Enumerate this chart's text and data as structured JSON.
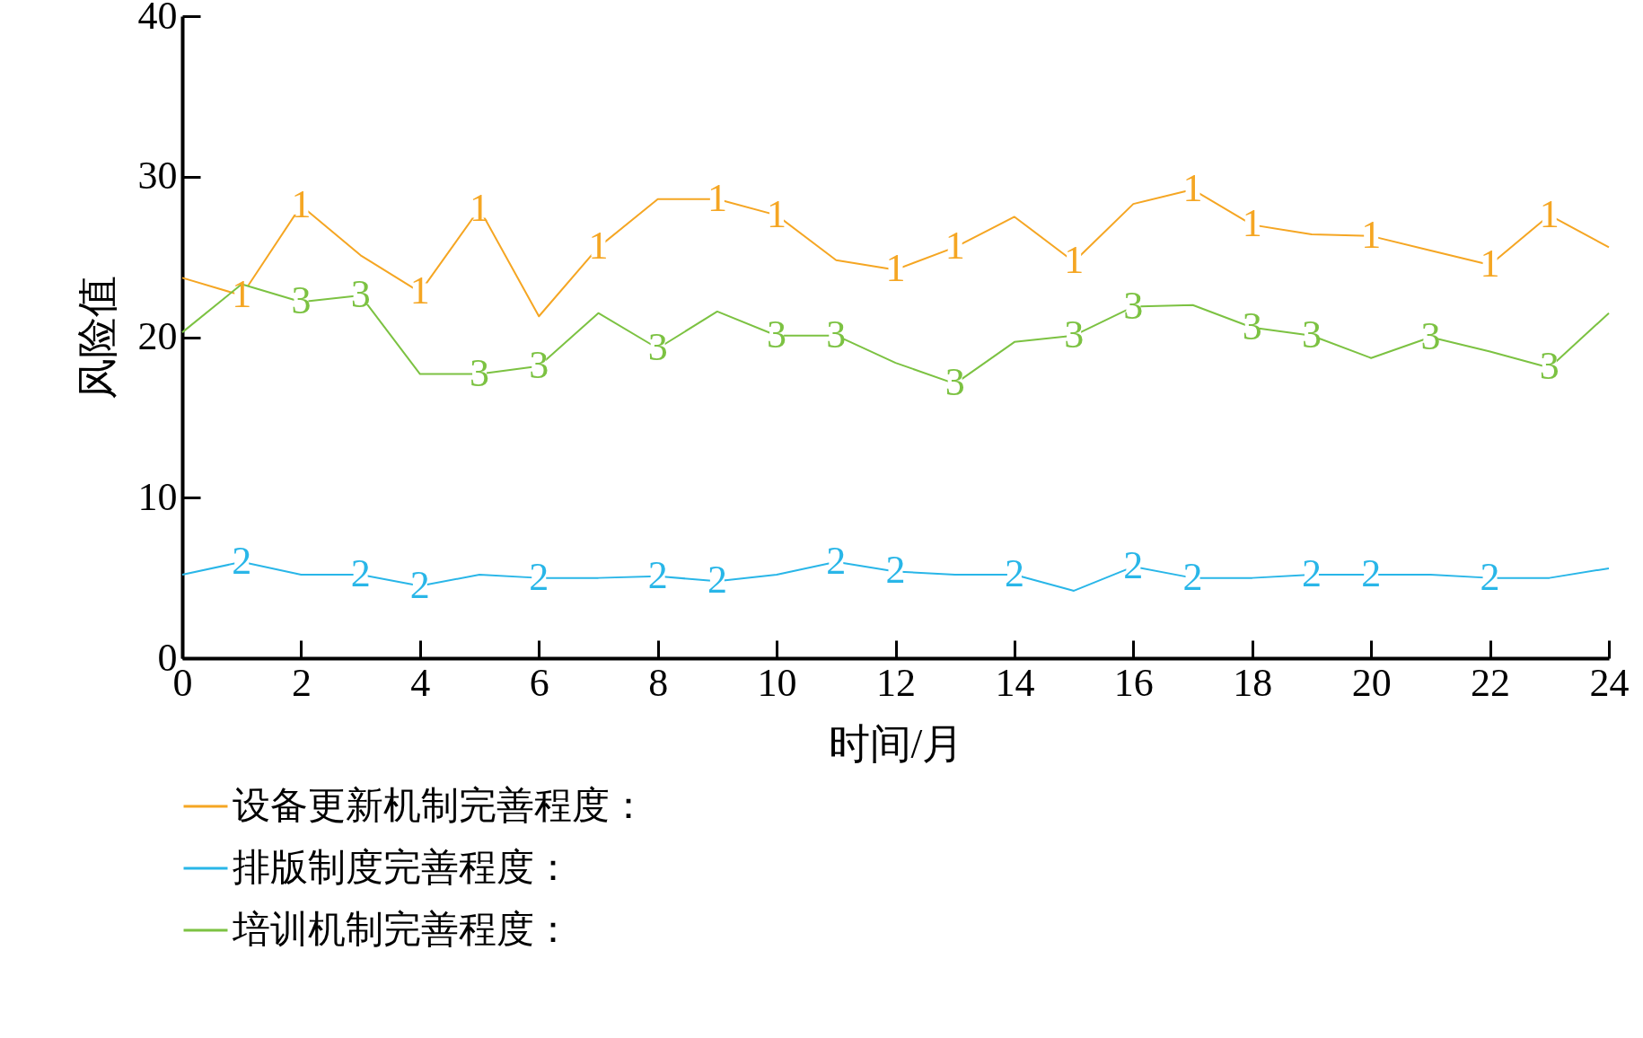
{
  "chart_data": {
    "type": "line",
    "xlabel": "时间/月",
    "ylabel": "风险值",
    "x": [
      0,
      1,
      2,
      3,
      4,
      5,
      6,
      7,
      8,
      9,
      10,
      11,
      12,
      13,
      14,
      15,
      16,
      17,
      18,
      19,
      20,
      21,
      22,
      23,
      24
    ],
    "series": [
      {
        "name": "设备更新机制完善程度：",
        "color": "#f5a623",
        "values": [
          23.7,
          22.6,
          28.2,
          25.1,
          22.8,
          28.0,
          21.3,
          25.6,
          28.6,
          28.6,
          27.6,
          24.8,
          24.2,
          25.6,
          27.5,
          24.7,
          28.3,
          29.2,
          27.0,
          26.4,
          26.3,
          25.4,
          24.5,
          27.6,
          25.6
        ]
      },
      {
        "name": "排版制度完善程度：",
        "color": "#29b6e8",
        "values": [
          5.2,
          6.0,
          5.2,
          5.2,
          4.5,
          5.2,
          5.0,
          5.0,
          5.1,
          4.8,
          5.2,
          6.0,
          5.4,
          5.2,
          5.2,
          4.2,
          5.7,
          5.0,
          5.0,
          5.2,
          5.2,
          5.2,
          5.0,
          5.0,
          5.6
        ]
      },
      {
        "name": "培训机制完善程度：",
        "color": "#7cc242",
        "values": [
          20.3,
          23.3,
          22.2,
          22.6,
          17.7,
          17.7,
          18.2,
          21.5,
          19.3,
          21.6,
          20.1,
          20.1,
          18.4,
          17.1,
          19.7,
          20.1,
          21.9,
          22.0,
          20.6,
          20.1,
          18.7,
          20.0,
          19.1,
          18.1,
          21.5
        ]
      }
    ],
    "annotations": [
      {
        "text": "1",
        "x": 1,
        "y": 22.6
      },
      {
        "text": "1",
        "x": 2,
        "y": 28.2
      },
      {
        "text": "1",
        "x": 4,
        "y": 22.8
      },
      {
        "text": "1",
        "x": 5,
        "y": 28.0
      },
      {
        "text": "1",
        "x": 7,
        "y": 25.6
      },
      {
        "text": "1",
        "x": 9,
        "y": 28.6
      },
      {
        "text": "1",
        "x": 10,
        "y": 27.6
      },
      {
        "text": "1",
        "x": 12,
        "y": 24.2
      },
      {
        "text": "1",
        "x": 13,
        "y": 25.6
      },
      {
        "text": "1",
        "x": 15,
        "y": 24.7
      },
      {
        "text": "1",
        "x": 17,
        "y": 29.2
      },
      {
        "text": "1",
        "x": 18,
        "y": 27.0
      },
      {
        "text": "1",
        "x": 20,
        "y": 26.3
      },
      {
        "text": "1",
        "x": 22,
        "y": 24.5
      },
      {
        "text": "1",
        "x": 23,
        "y": 27.6
      },
      {
        "text": "2",
        "x": 1,
        "y": 6.0
      },
      {
        "text": "2",
        "x": 3,
        "y": 5.2
      },
      {
        "text": "2",
        "x": 4,
        "y": 4.5
      },
      {
        "text": "2",
        "x": 6,
        "y": 5.0
      },
      {
        "text": "2",
        "x": 8,
        "y": 5.1
      },
      {
        "text": "2",
        "x": 9,
        "y": 4.8
      },
      {
        "text": "2",
        "x": 11,
        "y": 6.0
      },
      {
        "text": "2",
        "x": 12,
        "y": 5.4
      },
      {
        "text": "2",
        "x": 14,
        "y": 5.2
      },
      {
        "text": "2",
        "x": 16,
        "y": 5.7
      },
      {
        "text": "2",
        "x": 17,
        "y": 5.0
      },
      {
        "text": "2",
        "x": 19,
        "y": 5.2
      },
      {
        "text": "2",
        "x": 20,
        "y": 5.2
      },
      {
        "text": "2",
        "x": 22,
        "y": 5.0
      },
      {
        "text": "3",
        "x": 2,
        "y": 22.2
      },
      {
        "text": "3",
        "x": 3,
        "y": 22.6
      },
      {
        "text": "3",
        "x": 5,
        "y": 17.7
      },
      {
        "text": "3",
        "x": 6,
        "y": 18.2
      },
      {
        "text": "3",
        "x": 8,
        "y": 19.3
      },
      {
        "text": "3",
        "x": 10,
        "y": 20.1
      },
      {
        "text": "3",
        "x": 11,
        "y": 20.1
      },
      {
        "text": "3",
        "x": 13,
        "y": 17.1
      },
      {
        "text": "3",
        "x": 15,
        "y": 20.1
      },
      {
        "text": "3",
        "x": 16,
        "y": 21.9
      },
      {
        "text": "3",
        "x": 18,
        "y": 20.6
      },
      {
        "text": "3",
        "x": 19,
        "y": 20.1
      },
      {
        "text": "3",
        "x": 21,
        "y": 20.0
      },
      {
        "text": "3",
        "x": 23,
        "y": 18.1
      }
    ],
    "xlim": [
      0,
      24
    ],
    "xticks": [
      0,
      2,
      4,
      6,
      8,
      10,
      12,
      14,
      16,
      18,
      20,
      22,
      24
    ],
    "ylim": [
      0,
      40
    ],
    "yticks": [
      0,
      10,
      20,
      30,
      40
    ],
    "legend": "bottom"
  }
}
